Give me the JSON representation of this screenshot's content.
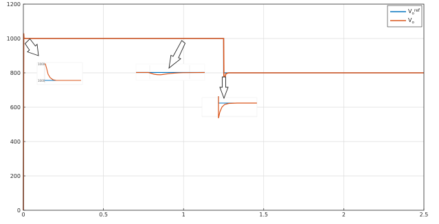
{
  "chart_data": {
    "type": "line",
    "title": "",
    "xlabel": "",
    "ylabel": "",
    "xlim": [
      0,
      2.5
    ],
    "ylim": [
      0,
      1200
    ],
    "grid": true,
    "legend_position": "top-right",
    "x_ticks": [
      "0",
      "0.5",
      "1",
      "1.5",
      "2",
      "2.5"
    ],
    "y_ticks": [
      "0",
      "200",
      "400",
      "600",
      "800",
      "1000",
      "1200"
    ],
    "series": [
      {
        "name": "V",
        "sub": "o",
        "sup": "ref",
        "color": "#0072BD",
        "x": [
          0,
          0.002,
          1.25,
          1.25,
          2.5
        ],
        "y": [
          0,
          1000,
          1000,
          800,
          800
        ]
      },
      {
        "name": "V",
        "sub": "o",
        "sup": "",
        "color": "#D95319",
        "x": [
          0,
          0.002,
          0.004,
          0.01,
          0.02,
          1.25,
          1.252,
          1.256,
          1.265,
          1.28,
          1.3,
          2.5
        ],
        "y": [
          0,
          1030,
          1000,
          1001,
          1000,
          1000,
          740,
          770,
          795,
          800,
          800,
          800
        ]
      }
    ],
    "insets": [
      {
        "ytick_top": "1000",
        "ytick_bottom": "1000"
      },
      {
        "ytick_top": "",
        "ytick_bottom": ""
      },
      {
        "ytick_top": "",
        "ytick_bottom": ""
      }
    ]
  }
}
